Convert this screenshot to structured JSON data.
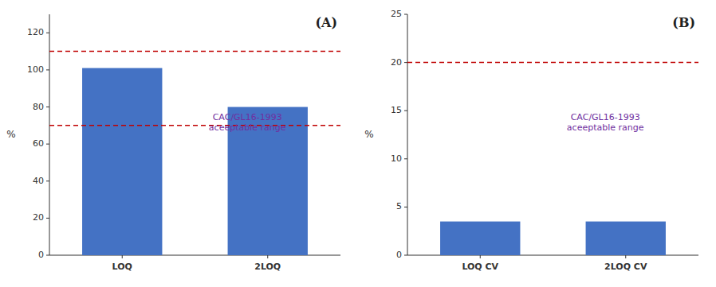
{
  "chart_data": [
    {
      "type": "bar",
      "title": "(A)",
      "y_label": "%",
      "categories": [
        "LOQ",
        "2LOQ"
      ],
      "values": [
        101,
        80
      ],
      "color": "#4472c4",
      "ylim": [
        0,
        130
      ],
      "yticks": [
        0,
        20,
        40,
        60,
        80,
        100,
        120
      ],
      "grid": false,
      "reference_lines": [
        {
          "value": 110,
          "color": "#c00000",
          "line_style": "dashed"
        },
        {
          "value": 70,
          "color": "#c00000",
          "line_style": "dashed"
        }
      ],
      "annotations": [
        {
          "text": "CAC/GL16-1993\naceeptable range",
          "color": "#7030a0"
        }
      ]
    },
    {
      "type": "bar",
      "title": "(B)",
      "y_label": "%",
      "categories": [
        "LOQ CV",
        "2LOQ CV"
      ],
      "values": [
        3.5,
        3.5
      ],
      "color": "#4472c4",
      "ylim": [
        0,
        25
      ],
      "yticks": [
        0,
        5,
        10,
        15,
        20,
        25
      ],
      "grid": false,
      "reference_lines": [
        {
          "value": 20,
          "color": "#c00000",
          "line_style": "dashed"
        }
      ],
      "annotations": [
        {
          "text": "CAC/GL16-1993\naceeptable range",
          "color": "#7030a0"
        }
      ]
    }
  ]
}
